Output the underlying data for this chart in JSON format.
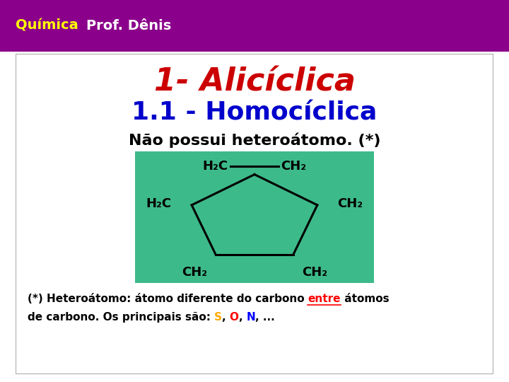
{
  "bg_color": "#ffffff",
  "header_color": "#8B008B",
  "title_line1": "1- Alicíclica",
  "title_line1_color": "#cc0000",
  "title_line2": "1.1 - Homocíclica",
  "title_line2_color": "#0000cc",
  "subtitle": "Não possui heteroátomo. (*)",
  "subtitle_color": "#000000",
  "footnote_color_main": "#000000",
  "footnote_color_red": "#ff0000",
  "footnote_color_S": "#ffaa00",
  "footnote_color_O": "#ff0000",
  "footnote_color_N": "#0000ff",
  "molecule_bg": "#3dba8a",
  "molecule_line_color": "#000000"
}
